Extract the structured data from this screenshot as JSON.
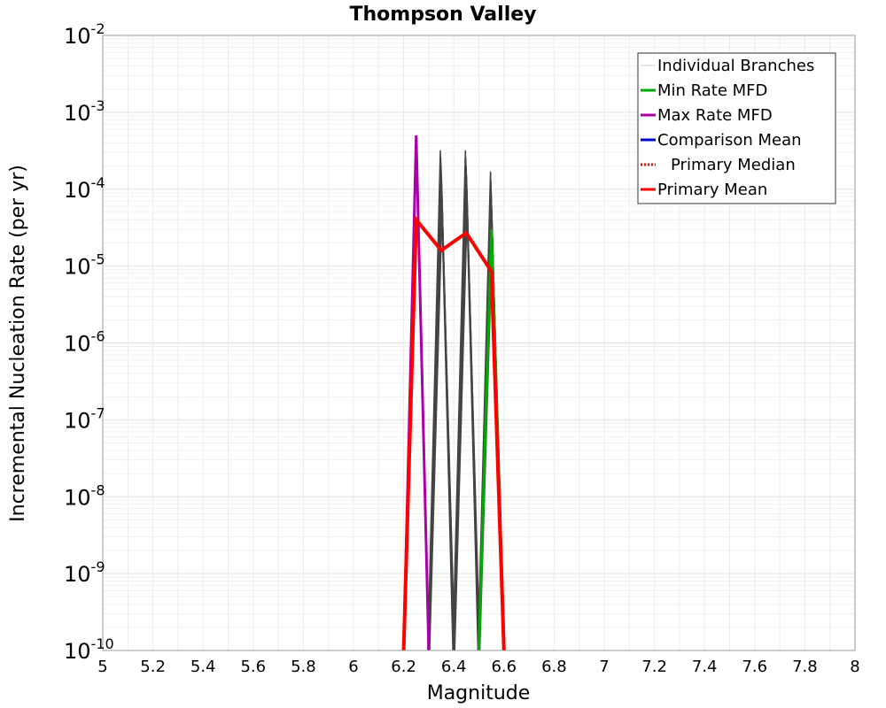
{
  "chart_data": {
    "type": "line",
    "title": "Thompson Valley",
    "xlabel": "Magnitude",
    "ylabel": "Incremental Nucleation Rate (per yr)",
    "xlim": [
      5,
      8
    ],
    "ylim_exp": [
      -10,
      -2
    ],
    "yscale": "log",
    "x_ticks": [
      "5",
      "5.2",
      "5.4",
      "5.6",
      "5.8",
      "6",
      "6.2",
      "6.4",
      "6.6",
      "6.8",
      "7",
      "7.2",
      "7.4",
      "7.6",
      "7.8",
      "8"
    ],
    "y_ticks": [
      {
        "base": "10",
        "exp": "-10"
      },
      {
        "base": "10",
        "exp": "-9"
      },
      {
        "base": "10",
        "exp": "-8"
      },
      {
        "base": "10",
        "exp": "-7"
      },
      {
        "base": "10",
        "exp": "-6"
      },
      {
        "base": "10",
        "exp": "-5"
      },
      {
        "base": "10",
        "exp": "-4"
      },
      {
        "base": "10",
        "exp": "-3"
      },
      {
        "base": "10",
        "exp": "-2"
      }
    ],
    "grid": true,
    "legend_position": "top-right",
    "legend": [
      {
        "label": "Individual Branches",
        "color": "#cccccc",
        "style": "solid"
      },
      {
        "label": "Min Rate MFD",
        "color": "#00aa00",
        "style": "solid"
      },
      {
        "label": "Max Rate MFD",
        "color": "#aa00aa",
        "style": "solid"
      },
      {
        "label": "Comparison Mean",
        "color": "#0000cc",
        "style": "solid"
      },
      {
        "label": "Primary Median",
        "color": "#ff0000",
        "style": "dotted",
        "indent": true
      },
      {
        "label": "Primary Mean",
        "color": "#ff0000",
        "style": "solid"
      }
    ],
    "series": [
      {
        "name": "Individual Branches",
        "color": "#444444",
        "width": 1.5,
        "peaks": [
          {
            "center": 6.35,
            "values": [
              0.00032,
              0.00026,
              0.0002,
              0.00015,
              0.0001,
              6e-05
            ]
          },
          {
            "center": 6.45,
            "values": [
              0.00032,
              0.00026,
              0.0002,
              0.00015,
              0.0001,
              6e-05
            ]
          },
          {
            "center": 6.55,
            "values": [
              0.00017,
              0.00013,
              9e-05,
              6e-05,
              4e-05,
              2.5e-05
            ]
          }
        ],
        "half_width": 0.05,
        "floor": 1e-10
      },
      {
        "name": "Min Rate MFD",
        "color": "#00aa00",
        "width": 3,
        "x": [
          6.5,
          6.55,
          6.6
        ],
        "y": [
          1e-10,
          3e-05,
          1e-10
        ]
      },
      {
        "name": "Max Rate MFD",
        "color": "#aa00aa",
        "width": 3,
        "x": [
          6.2,
          6.25,
          6.3
        ],
        "y": [
          1e-10,
          0.0005,
          1e-10
        ]
      },
      {
        "name": "Primary Mean",
        "color": "#ff0000",
        "width": 4,
        "x": [
          6.2,
          6.25,
          6.35,
          6.45,
          6.55,
          6.6
        ],
        "y": [
          1e-10,
          4e-05,
          1.6e-05,
          2.7e-05,
          8.5e-06,
          1e-10
        ]
      }
    ]
  }
}
